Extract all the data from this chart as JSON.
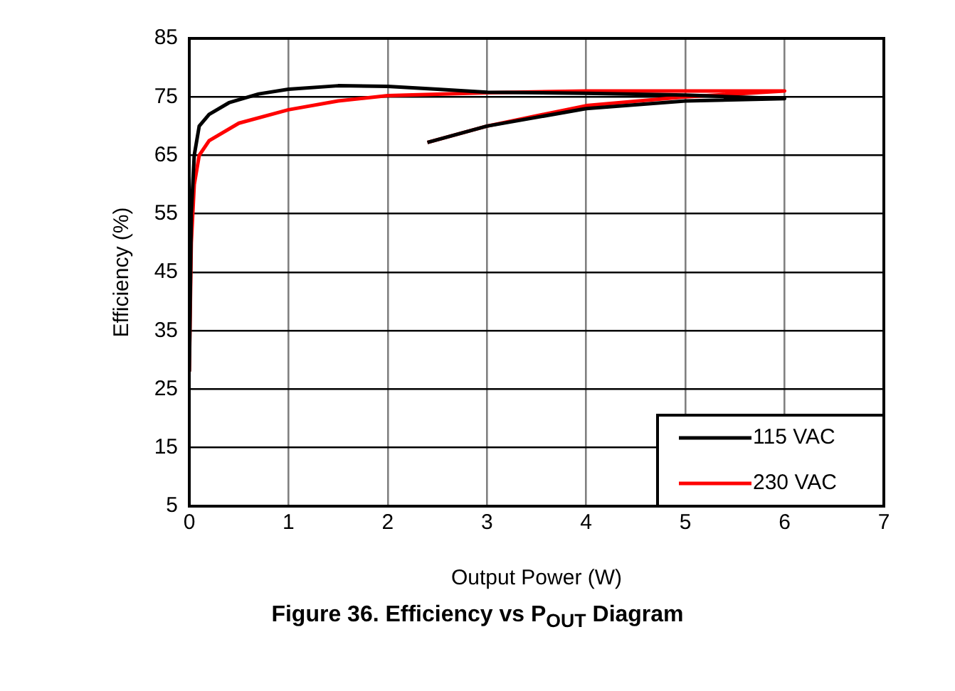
{
  "chart_data": {
    "type": "line",
    "title": "Figure 36. Efficiency vs P$_{OUT}$ Diagram",
    "xlabel": "Output Power (W)",
    "ylabel": "Efficiency (%)",
    "xlim": [
      0,
      7
    ],
    "xticks": [
      0,
      1,
      2,
      3,
      4,
      5,
      6,
      7
    ],
    "ylim": [
      5,
      85
    ],
    "yticks": [
      5,
      15,
      25,
      35,
      45,
      55,
      65,
      75,
      85
    ],
    "grid": true,
    "legend": "bottom right",
    "marker": "none",
    "line_style": "solid",
    "series": [
      {
        "name": "115 VAC",
        "color": "#000000",
        "x": [
          0,
          0.02,
          0.05,
          0.1,
          0.2,
          0.4,
          0.7,
          1,
          1.5,
          2,
          2.5,
          3,
          4,
          5,
          6,
          6,
          5,
          4,
          3,
          2.4
        ],
        "values": [
          28,
          55,
          65,
          70,
          72,
          74,
          75.5,
          76.3,
          76.9,
          76.8,
          76.3,
          75.8,
          75.6,
          75.3,
          74.7,
          74.7,
          74.3,
          73,
          70,
          67.2
        ]
      },
      {
        "name": "230 VAC",
        "color": "#ff0000",
        "x": [
          0,
          0.02,
          0.05,
          0.1,
          0.2,
          0.5,
          1,
          1.5,
          2,
          3,
          4,
          5,
          6,
          6,
          5,
          4,
          3,
          2.4
        ],
        "values": [
          28,
          50,
          60,
          65,
          67.5,
          70.5,
          72.8,
          74.3,
          75.2,
          75.7,
          76,
          76,
          76,
          76,
          75,
          73.5,
          70,
          67.2
        ]
      }
    ]
  }
}
